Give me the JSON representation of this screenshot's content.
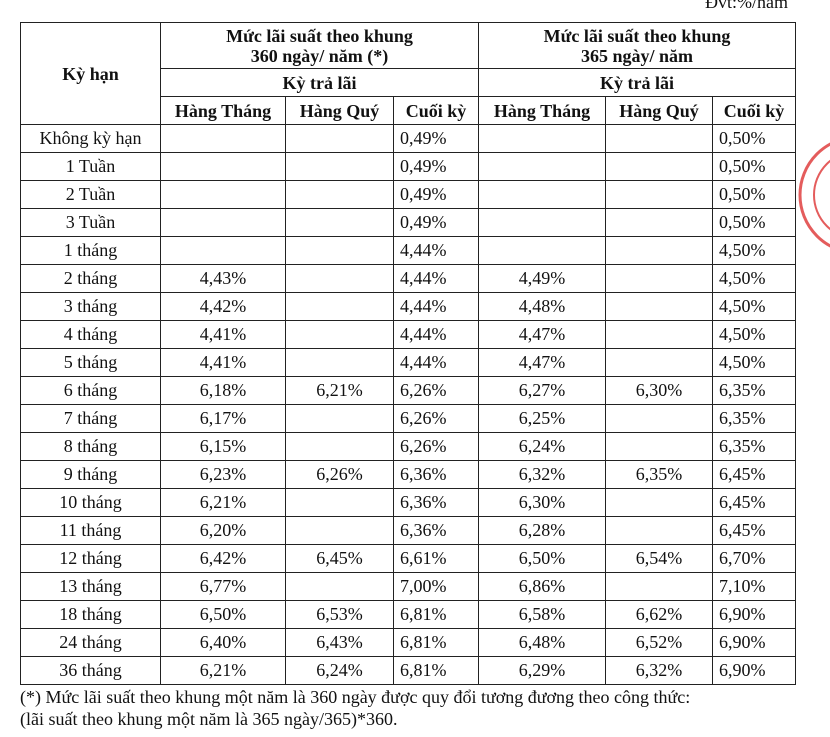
{
  "header": {
    "unit": "Đvt:%/năm"
  },
  "table": {
    "columns": {
      "term": "Kỳ hạn",
      "group1": [
        "Mức lãi suất theo khung",
        "360 ngày/ năm (*)"
      ],
      "group2": [
        "Mức lãi suất theo khung",
        "365 ngày/ năm"
      ],
      "sub1": "Kỳ trả lãi",
      "sub2": "Kỳ trả lãi",
      "periods": [
        "Hàng Tháng",
        "Hàng Quý",
        "Cuối kỳ",
        "Hàng Tháng",
        "Hàng Quý",
        "Cuối kỳ"
      ]
    },
    "rows": [
      [
        "Không kỳ hạn",
        null,
        null,
        "0,49%",
        null,
        null,
        "0,50%"
      ],
      [
        "1 Tuần",
        null,
        null,
        "0,49%",
        null,
        null,
        "0,50%"
      ],
      [
        "2 Tuần",
        null,
        null,
        "0,49%",
        null,
        null,
        "0,50%"
      ],
      [
        "3 Tuần",
        null,
        null,
        "0,49%",
        null,
        null,
        "0,50%"
      ],
      [
        "1 tháng",
        null,
        null,
        "4,44%",
        null,
        null,
        "4,50%"
      ],
      [
        "2 tháng",
        "4,43%",
        null,
        "4,44%",
        "4,49%",
        null,
        "4,50%"
      ],
      [
        "3 tháng",
        "4,42%",
        null,
        "4,44%",
        "4,48%",
        null,
        "4,50%"
      ],
      [
        "4 tháng",
        "4,41%",
        null,
        "4,44%",
        "4,47%",
        null,
        "4,50%"
      ],
      [
        "5 tháng",
        "4,41%",
        null,
        "4,44%",
        "4,47%",
        null,
        "4,50%"
      ],
      [
        "6 tháng",
        "6,18%",
        "6,21%",
        "6,26%",
        "6,27%",
        "6,30%",
        "6,35%"
      ],
      [
        "7 tháng",
        "6,17%",
        null,
        "6,26%",
        "6,25%",
        null,
        "6,35%"
      ],
      [
        "8 tháng",
        "6,15%",
        null,
        "6,26%",
        "6,24%",
        null,
        "6,35%"
      ],
      [
        "9 tháng",
        "6,23%",
        "6,26%",
        "6,36%",
        "6,32%",
        "6,35%",
        "6,45%"
      ],
      [
        "10 tháng",
        "6,21%",
        null,
        "6,36%",
        "6,30%",
        null,
        "6,45%"
      ],
      [
        "11 tháng",
        "6,20%",
        null,
        "6,36%",
        "6,28%",
        null,
        "6,45%"
      ],
      [
        "12 tháng",
        "6,42%",
        "6,45%",
        "6,61%",
        "6,50%",
        "6,54%",
        "6,70%"
      ],
      [
        "13 tháng",
        "6,77%",
        null,
        "7,00%",
        "6,86%",
        null,
        "7,10%"
      ],
      [
        "18 tháng",
        "6,50%",
        "6,53%",
        "6,81%",
        "6,58%",
        "6,62%",
        "6,90%"
      ],
      [
        "24 tháng",
        "6,40%",
        "6,43%",
        "6,81%",
        "6,48%",
        "6,52%",
        "6,90%"
      ],
      [
        "36 tháng",
        "6,21%",
        "6,24%",
        "6,81%",
        "6,29%",
        "6,32%",
        "6,90%"
      ]
    ]
  },
  "footnote": [
    "(*) Mức lãi suất theo khung một năm là 360 ngày được quy đổi tương đương  theo công thức:",
    "(lãi suất theo khung một năm là 365 ngày/365)*360."
  ]
}
